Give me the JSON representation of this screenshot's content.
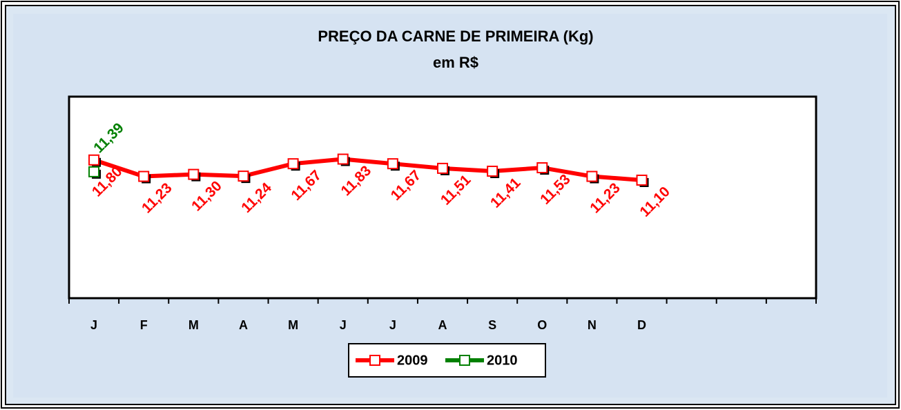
{
  "chart_data": {
    "type": "line",
    "title": "PREÇO DA CARNE DE PRIMEIRA (Kg)",
    "subtitle": "em R$",
    "categories": [
      "J",
      "F",
      "M",
      "A",
      "M",
      "J",
      "J",
      "A",
      "S",
      "O",
      "N",
      "D",
      null,
      null,
      null
    ],
    "series": [
      {
        "name": "2009",
        "color": "#ff0000",
        "values": [
          11.8,
          11.23,
          11.3,
          11.24,
          11.67,
          11.83,
          11.67,
          11.51,
          11.41,
          11.53,
          11.23,
          11.1,
          null,
          null,
          null
        ],
        "value_labels": [
          "11,80",
          "11,23",
          "11,30",
          "11,24",
          "11,67",
          "11,83",
          "11,67",
          "11,51",
          "11,41",
          "11,53",
          "11,23",
          "11,10",
          null,
          null,
          null
        ]
      },
      {
        "name": "2010",
        "color": "#008000",
        "values": [
          11.39,
          null,
          null,
          null,
          null,
          null,
          null,
          null,
          null,
          null,
          null,
          null,
          null,
          null,
          null
        ],
        "value_labels": [
          "11,39",
          null,
          null,
          null,
          null,
          null,
          null,
          null,
          null,
          null,
          null,
          null,
          null,
          null,
          null
        ]
      }
    ],
    "ylim": [
      7,
      14
    ],
    "legend": "bottom"
  }
}
